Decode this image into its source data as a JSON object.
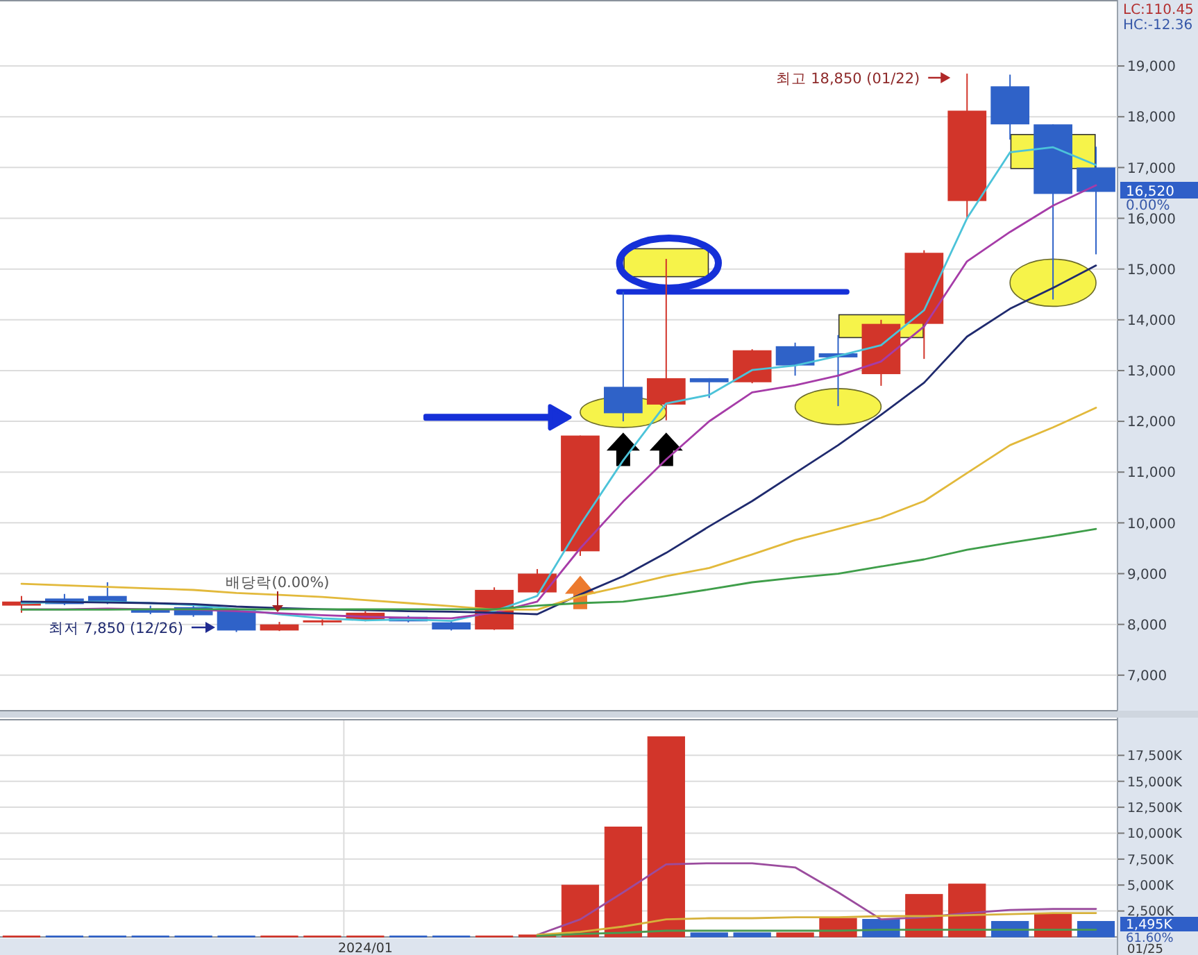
{
  "chart_data": [
    {
      "type": "candlestick",
      "categories": [
        null,
        null,
        null,
        null,
        null,
        null,
        null,
        null,
        null,
        null,
        null,
        null,
        null,
        null,
        null,
        null,
        null,
        null,
        null,
        null,
        null,
        null,
        null,
        null,
        null,
        null
      ],
      "ohlc": [
        [
          8370,
          8560,
          8230,
          8450
        ],
        [
          8510,
          8600,
          8380,
          8400
        ],
        [
          8560,
          8830,
          8400,
          8420
        ],
        [
          8310,
          8370,
          8200,
          8230
        ],
        [
          8340,
          8400,
          8150,
          8180
        ],
        [
          8290,
          8300,
          7850,
          7880
        ],
        [
          7880,
          8050,
          7870,
          8000
        ],
        [
          8040,
          8100,
          7980,
          8080
        ],
        [
          8090,
          8260,
          8060,
          8230
        ],
        [
          8150,
          8170,
          8040,
          8060
        ],
        [
          8040,
          8060,
          7880,
          7900
        ],
        [
          7900,
          8730,
          7890,
          8680
        ],
        [
          8630,
          9090,
          8620,
          9000
        ],
        [
          9440,
          11720,
          9350,
          11720
        ],
        [
          12680,
          14550,
          12000,
          12160
        ],
        [
          12330,
          15200,
          12020,
          12850
        ],
        [
          12850,
          12850,
          12460,
          12770
        ],
        [
          12770,
          13420,
          12750,
          13400
        ],
        [
          13480,
          13550,
          12900,
          13100
        ],
        [
          13340,
          13700,
          12300,
          13260
        ],
        [
          12930,
          14000,
          12700,
          13920
        ],
        [
          13920,
          15370,
          13230,
          15320
        ],
        [
          16340,
          18850,
          15980,
          18120
        ],
        [
          18600,
          18830,
          17550,
          17850
        ],
        [
          17850,
          17850,
          14400,
          16480
        ],
        [
          17000,
          17410,
          15290,
          16520
        ]
      ],
      "colors": [
        "#d2352a",
        "#2f62c8",
        "#2f62c8",
        "#2f62c8",
        "#2f62c8",
        "#2f62c8",
        "#d2352a",
        "#d2352a",
        "#d2352a",
        "#2f62c8",
        "#2f62c8",
        "#d2352a",
        "#d2352a",
        "#d2352a",
        "#2f62c8",
        "#d2352a",
        "#2f62c8",
        "#d2352a",
        "#2f62c8",
        "#2f62c8",
        "#d2352a",
        "#d2352a",
        "#d2352a",
        "#2f62c8",
        "#2f62c8",
        "#2f62c8"
      ],
      "series": [
        {
          "type": "line",
          "color": "#4cc3d9",
          "values": [
            8420,
            8440,
            8450,
            8420,
            8380,
            8300,
            8200,
            8120,
            8080,
            8100,
            8070,
            8260,
            8560,
            9960,
            11230,
            12350,
            12520,
            13010,
            13100,
            13290,
            13500,
            14190,
            16000,
            17300,
            17400,
            17050
          ]
        },
        {
          "type": "line",
          "color": "#a63ca8",
          "values": [
            8300,
            8300,
            8310,
            8300,
            8290,
            8260,
            8220,
            8180,
            8150,
            8130,
            8120,
            8230,
            8450,
            9500,
            10420,
            11250,
            12000,
            12570,
            12710,
            12900,
            13180,
            13870,
            15150,
            15730,
            16250,
            16650
          ]
        },
        {
          "type": "line",
          "color": "#1f2a6e",
          "values": [
            8450,
            8440,
            8430,
            8420,
            8400,
            8350,
            8320,
            8300,
            8280,
            8260,
            8250,
            8230,
            8200,
            8590,
            8950,
            9410,
            9930,
            10430,
            10980,
            11530,
            12130,
            12760,
            13670,
            14220,
            14630,
            15070
          ]
        },
        {
          "type": "line",
          "color": "#e2b93b",
          "values": [
            8800,
            8770,
            8740,
            8710,
            8680,
            8620,
            8580,
            8540,
            8480,
            8420,
            8360,
            8290,
            8290,
            8560,
            8750,
            8950,
            9110,
            9380,
            9660,
            9880,
            10100,
            10430,
            10980,
            11530,
            11880,
            12270
          ]
        },
        {
          "type": "line",
          "color": "#3f9e4a",
          "values": [
            8290,
            8290,
            8290,
            8300,
            8300,
            8300,
            8300,
            8300,
            8300,
            8300,
            8300,
            8300,
            8370,
            8420,
            8450,
            8560,
            8690,
            8830,
            8920,
            9000,
            9140,
            9280,
            9470,
            9610,
            9740,
            9880
          ]
        }
      ],
      "ylim": [
        6300,
        20300
      ],
      "yticks": [
        {
          "value": 7000,
          "label": "7,000"
        },
        {
          "value": 8000,
          "label": "8,000"
        },
        {
          "value": 9000,
          "label": "9,000"
        },
        {
          "value": 10000,
          "label": "10,000"
        },
        {
          "value": 11000,
          "label": "11,000"
        },
        {
          "value": 12000,
          "label": "12,000"
        },
        {
          "value": 13000,
          "label": "13,000"
        },
        {
          "value": 14000,
          "label": "14,000"
        },
        {
          "value": 15000,
          "label": "15,000"
        },
        {
          "value": 16000,
          "label": "16,000"
        },
        {
          "value": 17000,
          "label": "17,000"
        },
        {
          "value": 18000,
          "label": "18,000"
        },
        {
          "value": 19000,
          "label": "19,000"
        }
      ],
      "grid": true,
      "tick_labels": "y",
      "annotations": [
        "최고 18,850 (01/22)",
        "최저 7,850 (12/26)",
        "배당락(0.00%)",
        "LC:110.45",
        "HC:-12.36",
        "16,520",
        "0.00%"
      ]
    },
    {
      "type": "bar",
      "categories": [
        null,
        null,
        null,
        null,
        null,
        null,
        null,
        null,
        "2024/01",
        null,
        null,
        null,
        null,
        null,
        null,
        null,
        null,
        null,
        null,
        null,
        null,
        null,
        null,
        null,
        null,
        null
      ],
      "series": [
        {
          "type": "bar",
          "colors": [
            "#d2352a",
            "#2f62c8",
            "#2f62c8",
            "#2f62c8",
            "#2f62c8",
            "#2f62c8",
            "#d2352a",
            "#d2352a",
            "#d2352a",
            "#2f62c8",
            "#2f62c8",
            "#d2352a",
            "#d2352a",
            "#d2352a",
            "#d2352a",
            "#d2352a",
            "#2f62c8",
            "#2f62c8",
            "#d2352a",
            "#d2352a",
            "#2f62c8",
            "#d2352a",
            "#d2352a",
            "#2f62c8",
            "#d2352a",
            "#2f62c8"
          ],
          "values": [
            100,
            100,
            100,
            100,
            100,
            100,
            100,
            100,
            100,
            100,
            100,
            100,
            200,
            5000,
            10600,
            19300,
            400,
            400,
            400,
            1800,
            1700,
            4100,
            5100,
            1500,
            2300,
            1500
          ]
        },
        {
          "type": "line",
          "color": "#9b4c9e",
          "values": [
            null,
            null,
            null,
            null,
            null,
            null,
            null,
            null,
            null,
            null,
            null,
            null,
            200,
            1700,
            4300,
            7000,
            7100,
            7100,
            6700,
            4300,
            1700,
            1900,
            2300,
            2600,
            2700,
            2700
          ]
        },
        {
          "type": "line",
          "color": "#d6b13a",
          "values": [
            null,
            null,
            null,
            null,
            null,
            null,
            null,
            null,
            null,
            null,
            null,
            null,
            200,
            500,
            1000,
            1700,
            1800,
            1800,
            1900,
            1900,
            2000,
            2000,
            2100,
            2200,
            2300,
            2300
          ]
        },
        {
          "type": "line",
          "color": "#4a9a50",
          "values": [
            null,
            null,
            null,
            null,
            null,
            null,
            null,
            null,
            null,
            null,
            null,
            null,
            100,
            300,
            400,
            600,
            600,
            600,
            600,
            600,
            700,
            700,
            700,
            700,
            700,
            700
          ]
        }
      ],
      "ylim": [
        0,
        21000
      ],
      "yticks": [
        {
          "value": 2500,
          "label": "2,500K"
        },
        {
          "value": 5000,
          "label": "5,000K"
        },
        {
          "value": 7500,
          "label": "7,500K"
        },
        {
          "value": 10000,
          "label": "10,000K"
        },
        {
          "value": 12500,
          "label": "12,500K"
        },
        {
          "value": 15000,
          "label": "15,000K"
        },
        {
          "value": 17500,
          "label": "17,500K"
        }
      ],
      "grid": true,
      "annotations": [
        "1,495K",
        "61.60%",
        "01/25"
      ]
    }
  ]
}
